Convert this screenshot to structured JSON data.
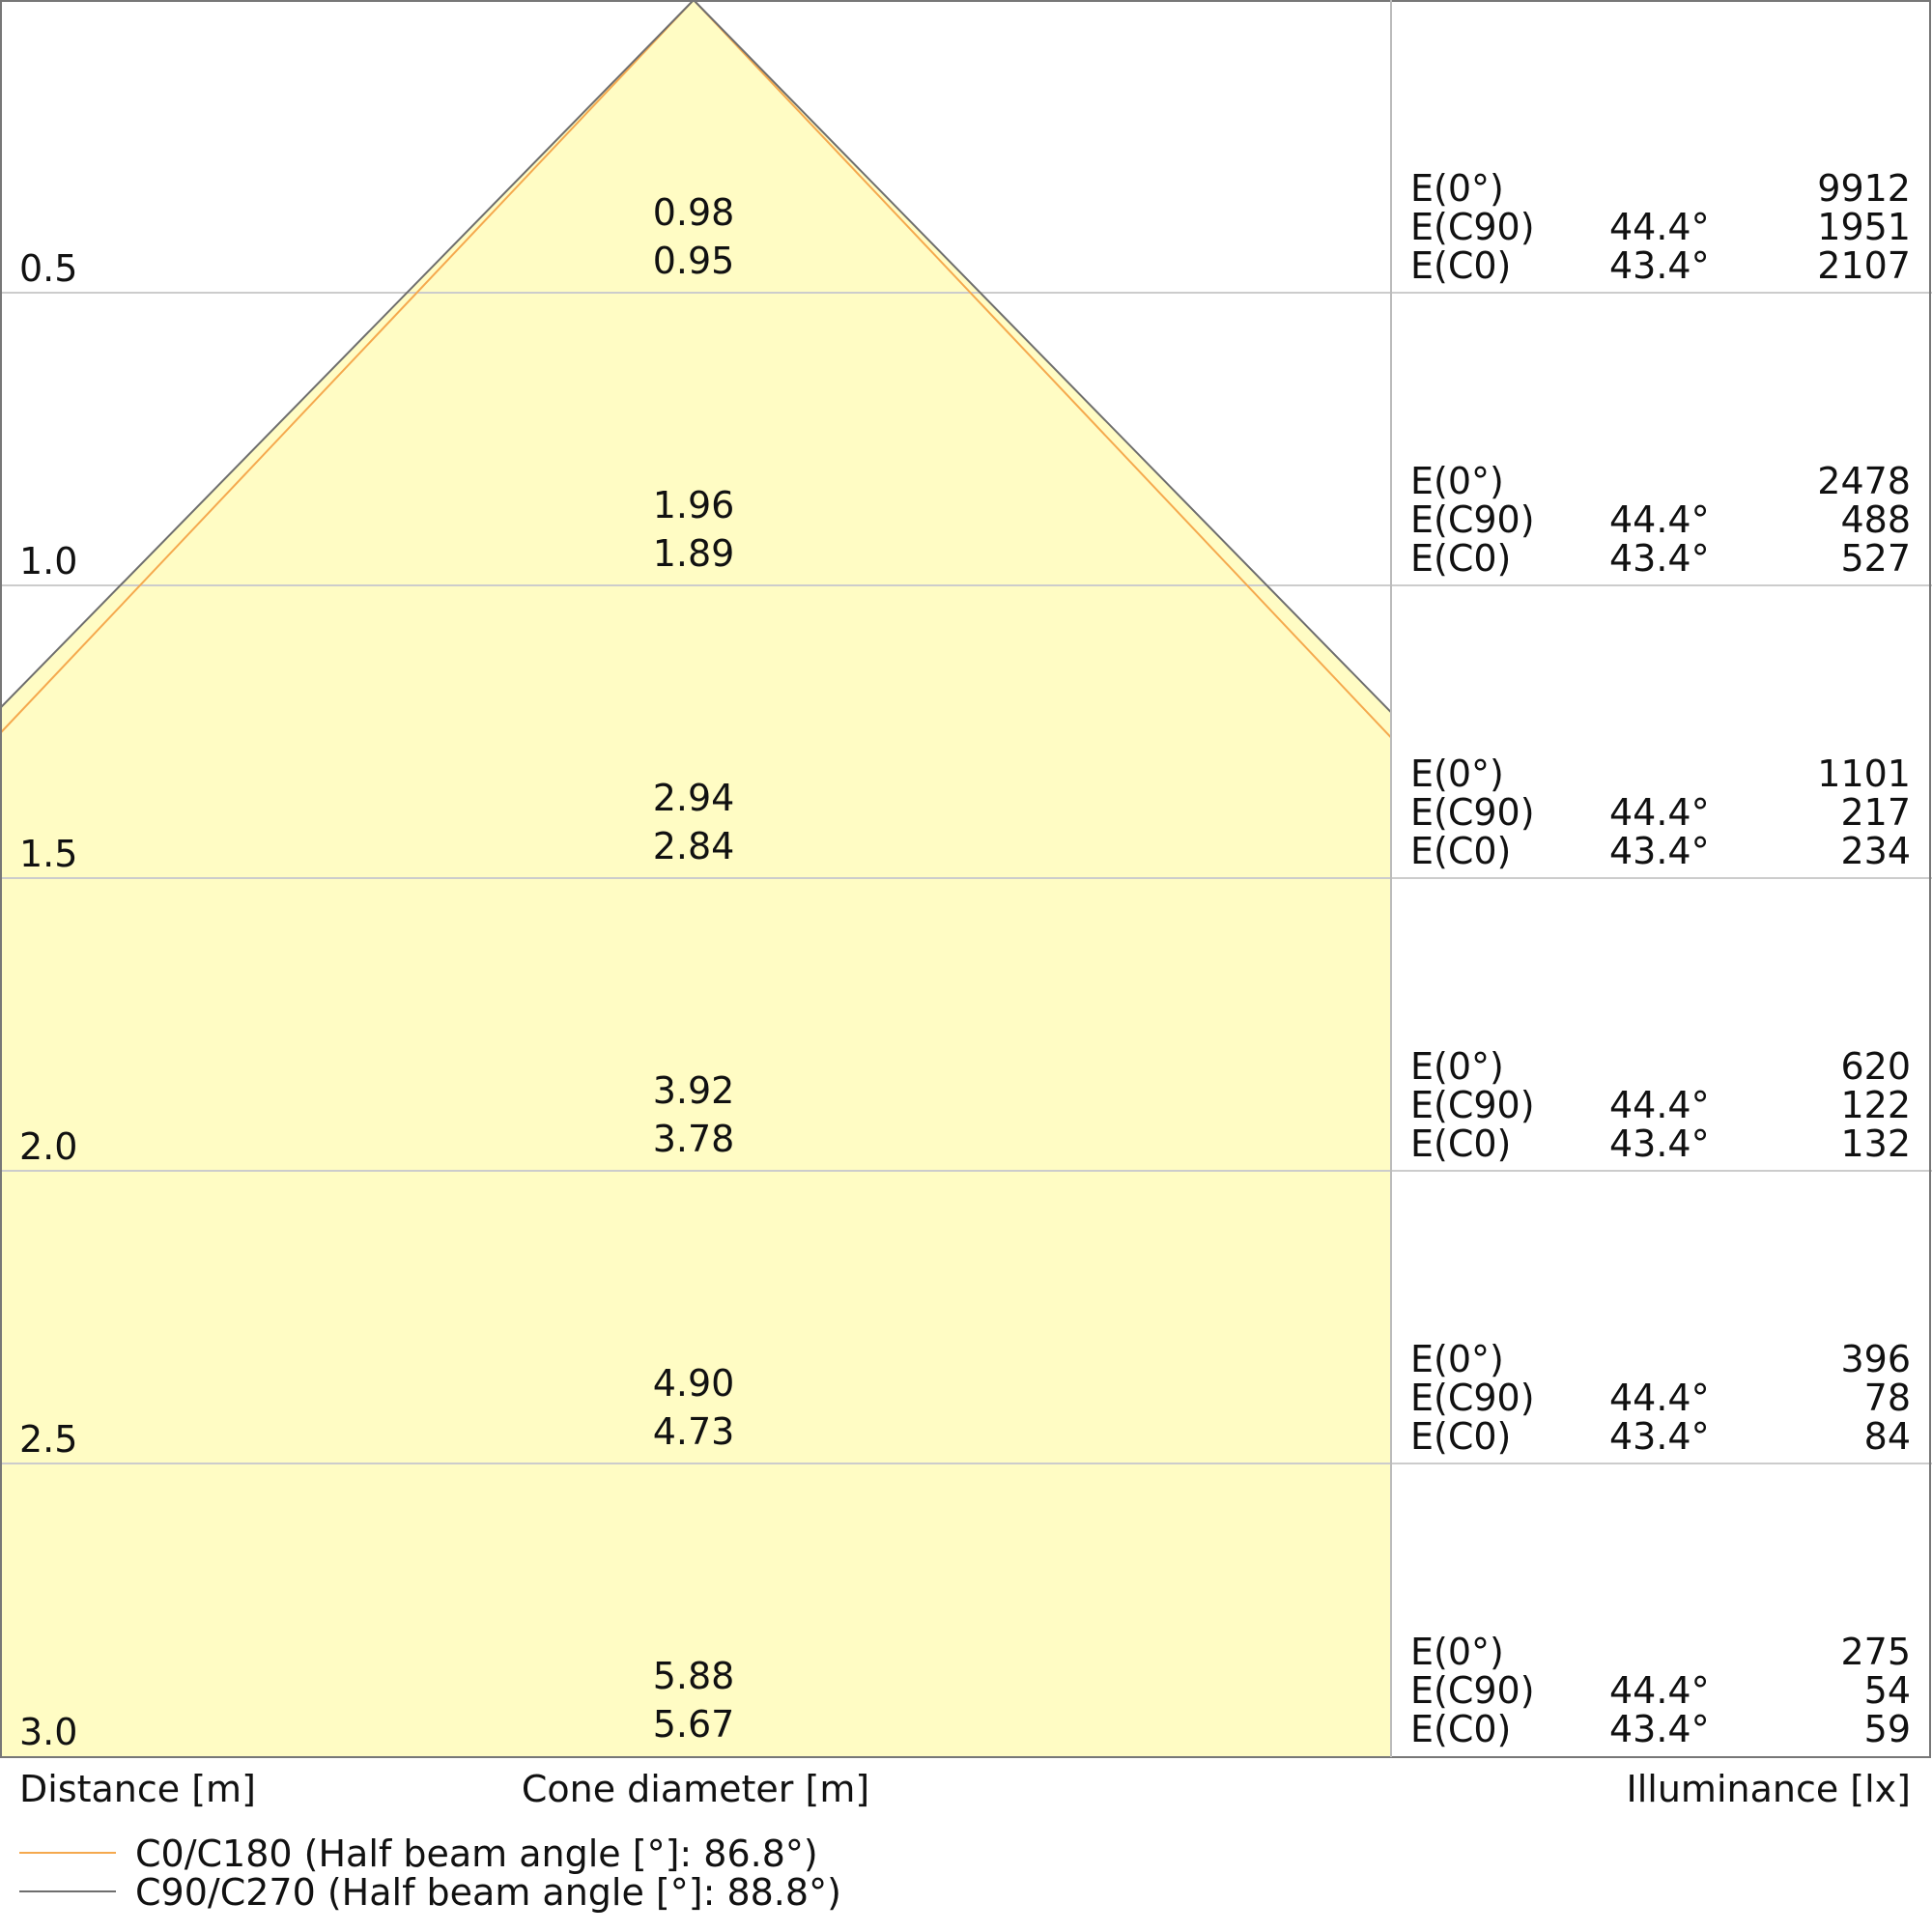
{
  "chart_data": {
    "type": "area",
    "title": "",
    "xlabel_distance": "Distance [m]",
    "xlabel_cone": "Cone diameter [m]",
    "xlabel_illuminance": "Illuminance [lx]",
    "distances": [
      "0.5",
      "1.0",
      "1.5",
      "2.0",
      "2.5",
      "3.0"
    ],
    "distance_values": [
      0.5,
      1.0,
      1.5,
      2.0,
      2.5,
      3.0
    ],
    "ylim": [
      0,
      3.0
    ],
    "grid": true,
    "legend_position": "bottom-left",
    "series": [
      {
        "name": "C0/C180 (Half beam angle [°]: 86.8°)",
        "half_angle": 43.4,
        "color": "#f5a94e",
        "diameters": [
          "0.95",
          "1.89",
          "2.84",
          "3.78",
          "4.73",
          "5.67"
        ]
      },
      {
        "name": "C90/C270 (Half beam angle [°]: 88.8°)",
        "half_angle": 44.4,
        "color": "#6e6e6e",
        "diameters": [
          "0.98",
          "1.96",
          "2.94",
          "3.92",
          "4.90",
          "5.88"
        ]
      }
    ],
    "fill_color": "#fffcc4",
    "illuminance_rows": [
      {
        "e0_label": "E(0°)",
        "e0": "9912",
        "c90_label": "E(C90)",
        "c90_angle": "44.4°",
        "c90": "1951",
        "c0_label": "E(C0)",
        "c0_angle": "43.4°",
        "c0": "2107"
      },
      {
        "e0_label": "E(0°)",
        "e0": "2478",
        "c90_label": "E(C90)",
        "c90_angle": "44.4°",
        "c90": "488",
        "c0_label": "E(C0)",
        "c0_angle": "43.4°",
        "c0": "527"
      },
      {
        "e0_label": "E(0°)",
        "e0": "1101",
        "c90_label": "E(C90)",
        "c90_angle": "44.4°",
        "c90": "217",
        "c0_label": "E(C0)",
        "c0_angle": "43.4°",
        "c0": "234"
      },
      {
        "e0_label": "E(0°)",
        "e0": "620",
        "c90_label": "E(C90)",
        "c90_angle": "44.4°",
        "c90": "122",
        "c0_label": "E(C0)",
        "c0_angle": "43.4°",
        "c0": "132"
      },
      {
        "e0_label": "E(0°)",
        "e0": "396",
        "c90_label": "E(C90)",
        "c90_angle": "44.4°",
        "c90": "78",
        "c0_label": "E(C0)",
        "c0_angle": "43.4°",
        "c0": "84"
      },
      {
        "e0_label": "E(0°)",
        "e0": "275",
        "c90_label": "E(C90)",
        "c90_angle": "44.4°",
        "c90": "54",
        "c0_label": "E(C0)",
        "c0_angle": "43.4°",
        "c0": "59"
      }
    ]
  }
}
